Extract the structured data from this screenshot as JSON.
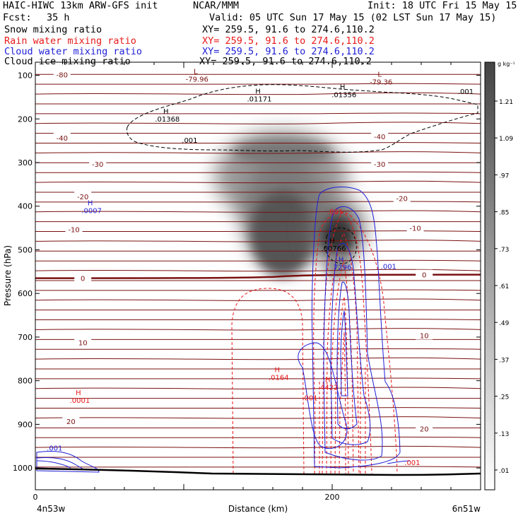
{
  "header": {
    "model": "HAIC-HIWC 13km ARW-GFS init",
    "org": "NCAR/MMM",
    "init": "Init: 18 UTC Fri 15 May 15",
    "fcst_label": "Fcst:",
    "fcst_value": "35 h",
    "valid": "Valid: 05 UTC Sun 17 May 15 (02 LST Sun 17 May 15)",
    "fields": [
      {
        "name": "Snow mixing ratio",
        "xy": "XY= 259.5, 91.6 to 274.6,110.2",
        "color": "#000000"
      },
      {
        "name": "Rain water mixing ratio",
        "xy": "XY= 259.5, 91.6 to 274.6,110.2",
        "color": "#e8191a"
      },
      {
        "name": "Cloud water mixing ratio",
        "xy": "XY= 259.5, 91.6 to 274.6,110.2",
        "color": "#1f1fd6"
      },
      {
        "name": "Cloud ice mixing ratio",
        "xy": "XY= 259.5, 91.6 to 274.6,110.2",
        "color": "#000000"
      }
    ]
  },
  "footer": {
    "left_location": "4n53w",
    "right_location": "6n51w"
  },
  "colors": {
    "temperature": "#7a1010",
    "rain": "#e8191a",
    "cloud_water": "#1f1fd6",
    "snow_shade": "#333333",
    "terrain": "#000000"
  },
  "chart_data": {
    "type": "cross-section",
    "xlabel": "Distance (km)",
    "ylabel": "Pressure (hPa)",
    "xlim": [
      0,
      300
    ],
    "ylim": [
      1050,
      70
    ],
    "x_ticks": [
      0,
      200
    ],
    "y_ticks": [
      100,
      200,
      300,
      400,
      500,
      600,
      700,
      800,
      900,
      1000
    ],
    "colorbar": {
      "unit": "g kg⁻¹",
      "labels": [
        "1.21",
        "1.09",
        ".97",
        ".85",
        ".73",
        ".61",
        ".49",
        ".37",
        ".25",
        ".13",
        ".01"
      ],
      "values": [
        1.21,
        1.09,
        0.97,
        0.85,
        0.73,
        0.61,
        0.49,
        0.37,
        0.25,
        0.13,
        0.01
      ]
    },
    "temperature_labels": [
      {
        "text": "-80",
        "x": 18,
        "p": 98
      },
      {
        "text": "-40",
        "x": 18,
        "p": 243
      },
      {
        "text": "-40",
        "x": 232,
        "p": 240
      },
      {
        "text": "-30",
        "x": 42,
        "p": 303
      },
      {
        "text": "-30",
        "x": 232,
        "p": 303
      },
      {
        "text": "-20",
        "x": 32,
        "p": 378
      },
      {
        "text": "-20",
        "x": 247,
        "p": 382
      },
      {
        "text": "-10",
        "x": 26,
        "p": 453
      },
      {
        "text": "-10",
        "x": 256,
        "p": 450
      },
      {
        "text": "0",
        "x": 32,
        "p": 565
      },
      {
        "text": "0",
        "x": 262,
        "p": 557
      },
      {
        "text": "10",
        "x": 32,
        "p": 712
      },
      {
        "text": "10",
        "x": 262,
        "p": 696
      },
      {
        "text": "20",
        "x": 24,
        "p": 893
      },
      {
        "text": "20",
        "x": 262,
        "p": 910
      }
    ],
    "extrema_labels": [
      {
        "mark": "L",
        "value": "-79.96",
        "x": 108,
        "p": 97,
        "color": "#7a1010"
      },
      {
        "mark": "L",
        "value": "-79.36",
        "x": 232,
        "p": 103,
        "color": "#7a1010"
      },
      {
        "mark": "H",
        "value": ".01171",
        "x": 150,
        "p": 142,
        "color": "#000000"
      },
      {
        "mark": "H",
        "value": ".01356",
        "x": 207,
        "p": 132,
        "color": "#000000"
      },
      {
        "mark": "H",
        "value": ".01368",
        "x": 88,
        "p": 188,
        "color": "#000000"
      },
      {
        "mark": "H",
        "value": ".0007",
        "x": 37,
        "p": 398,
        "color": "#1f1fd6"
      },
      {
        "mark": "H",
        "value": ".00766",
        "x": 200,
        "p": 485,
        "color": "#000000"
      },
      {
        "mark": "H",
        "value": "7296",
        "x": 206,
        "p": 528,
        "color": "#1f1fd6"
      },
      {
        "mark": "H",
        "value": ".0164",
        "x": 163,
        "p": 780,
        "color": "#e8191a"
      },
      {
        "mark": "H",
        "value": "4422",
        "x": 197,
        "p": 803,
        "color": "#e8191a"
      },
      {
        "mark": "H",
        "value": ".0001",
        "x": 29,
        "p": 833,
        "color": "#e8191a"
      }
    ],
    "contour_value_labels": [
      {
        "text": ".001",
        "x": 104,
        "p": 255,
        "color": "#000000"
      },
      {
        "text": ".001",
        "x": 290,
        "p": 143,
        "color": "#000000"
      },
      {
        "text": ".001",
        "x": 202,
        "p": 418,
        "color": "#e8191a"
      },
      {
        "text": ".001",
        "x": 238,
        "p": 544,
        "color": "#1f1fd6"
      },
      {
        "text": ".001",
        "x": 185,
        "p": 845,
        "color": "#e8191a"
      },
      {
        "text": ".001",
        "x": 13,
        "p": 960,
        "color": "#1f1fd6"
      },
      {
        "text": ".001",
        "x": 254,
        "p": 993,
        "color": "#e8191a"
      }
    ]
  }
}
